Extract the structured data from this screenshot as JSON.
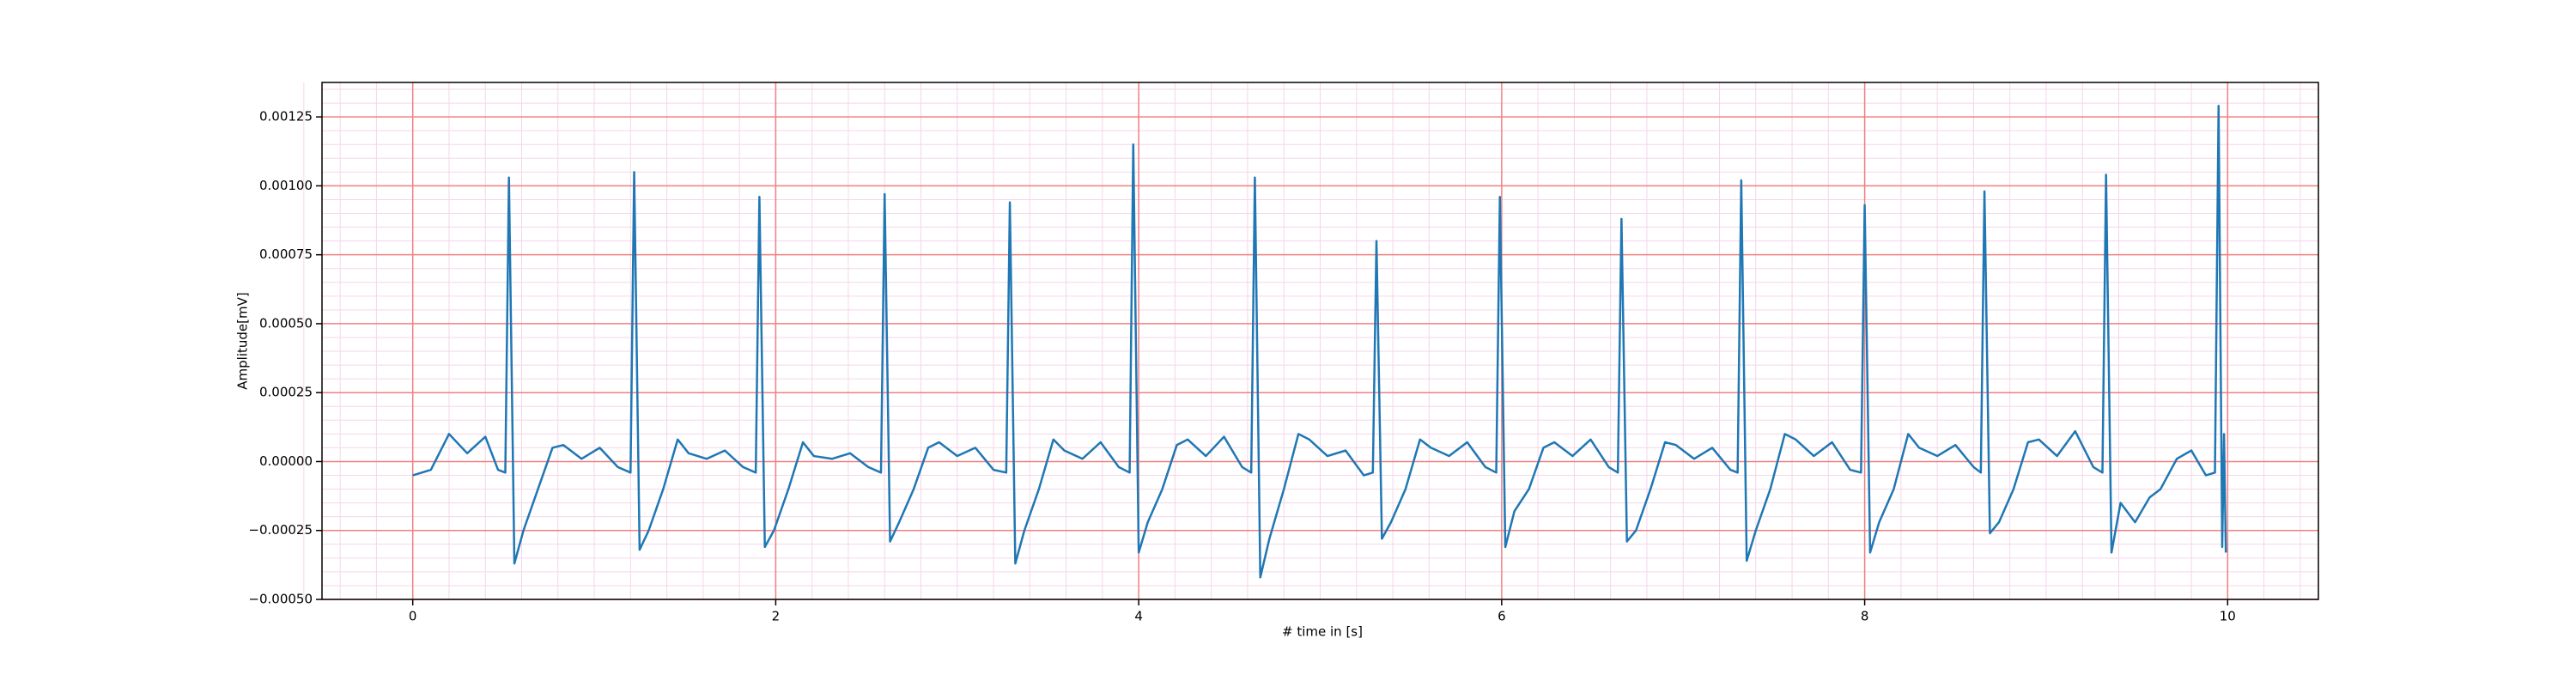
{
  "chart_data": {
    "type": "line",
    "xlabel": "# time in [s]",
    "ylabel": "Amplitude[mV]",
    "xlim": [
      -0.5,
      10.5
    ],
    "ylim": [
      -0.0005,
      0.001375
    ],
    "xticks": [
      0,
      2,
      4,
      6,
      8,
      10
    ],
    "yticks": [
      {
        "value": -0.0005,
        "label": "−0.00050"
      },
      {
        "value": -0.00025,
        "label": "−0.00025"
      },
      {
        "value": 0,
        "label": "0.00000"
      },
      {
        "value": 0.00025,
        "label": "0.00025"
      },
      {
        "value": 0.0005,
        "label": "0.00050"
      },
      {
        "value": 0.00075,
        "label": "0.00075"
      },
      {
        "value": 0.001,
        "label": "0.00100"
      },
      {
        "value": 0.00125,
        "label": "0.00125"
      }
    ],
    "grid": true,
    "series": [
      {
        "color": "#1f77b4",
        "x": [
          0,
          0.1,
          0.2,
          0.3,
          0.4,
          0.47,
          0.51,
          0.53,
          0.56,
          0.61,
          0.69,
          0.77,
          0.83,
          0.93,
          1.03,
          1.13,
          1.2,
          1.22,
          1.25,
          1.3,
          1.38,
          1.46,
          1.52,
          1.62,
          1.72,
          1.82,
          1.89,
          1.91,
          1.94,
          1.99,
          2.07,
          2.15,
          2.21,
          2.31,
          2.41,
          2.51,
          2.58,
          2.6,
          2.63,
          2.68,
          2.76,
          2.84,
          2.9,
          3.0,
          3.1,
          3.2,
          3.27,
          3.29,
          3.32,
          3.37,
          3.45,
          3.53,
          3.59,
          3.69,
          3.79,
          3.89,
          3.95,
          3.97,
          4.0,
          4.05,
          4.13,
          4.21,
          4.27,
          4.37,
          4.47,
          4.57,
          4.62,
          4.64,
          4.67,
          4.72,
          4.8,
          4.88,
          4.94,
          5.04,
          5.14,
          5.24,
          5.29,
          5.31,
          5.34,
          5.39,
          5.47,
          5.55,
          5.61,
          5.71,
          5.81,
          5.91,
          5.97,
          5.99,
          6.02,
          6.07,
          6.15,
          6.23,
          6.29,
          6.39,
          6.49,
          6.59,
          6.64,
          6.66,
          6.69,
          6.74,
          6.82,
          6.9,
          6.96,
          7.06,
          7.16,
          7.26,
          7.3,
          7.32,
          7.35,
          7.4,
          7.48,
          7.56,
          7.62,
          7.72,
          7.82,
          7.92,
          7.98,
          8.0,
          8.03,
          8.08,
          8.16,
          8.24,
          8.3,
          8.4,
          8.5,
          8.6,
          8.64,
          8.66,
          8.69,
          8.74,
          8.82,
          8.9,
          8.96,
          9.06,
          9.16,
          9.26,
          9.31,
          9.33,
          9.36,
          9.41,
          9.49,
          9.57,
          9.63,
          9.72,
          9.8,
          9.88,
          9.93,
          9.95,
          9.97,
          9.98,
          9.99
        ],
        "values": [
          -5e-05,
          -3e-05,
          0.0001,
          3e-05,
          9e-05,
          -3e-05,
          -4e-05,
          0.00103,
          -0.00037,
          -0.00025,
          -0.0001,
          5e-05,
          6e-05,
          1e-05,
          5e-05,
          -2e-05,
          -4e-05,
          0.00105,
          -0.00032,
          -0.00025,
          -0.0001,
          8e-05,
          3e-05,
          1e-05,
          4e-05,
          -2e-05,
          -4e-05,
          0.00096,
          -0.00031,
          -0.00025,
          -0.0001,
          7e-05,
          2e-05,
          1e-05,
          3e-05,
          -2e-05,
          -4e-05,
          0.00097,
          -0.00029,
          -0.00022,
          -0.0001,
          5e-05,
          7e-05,
          2e-05,
          5e-05,
          -3e-05,
          -4e-05,
          0.00094,
          -0.00037,
          -0.00025,
          -0.0001,
          8e-05,
          4e-05,
          1e-05,
          7e-05,
          -2e-05,
          -4e-05,
          0.00115,
          -0.00033,
          -0.00022,
          -0.0001,
          6e-05,
          8e-05,
          2e-05,
          9e-05,
          -2e-05,
          -4e-05,
          0.00103,
          -0.00042,
          -0.00028,
          -0.0001,
          0.0001,
          8e-05,
          2e-05,
          4e-05,
          -5e-05,
          -4e-05,
          0.0008,
          -0.00028,
          -0.00022,
          -0.0001,
          8e-05,
          5e-05,
          2e-05,
          7e-05,
          -2e-05,
          -4e-05,
          0.00096,
          -0.00031,
          -0.00018,
          -0.0001,
          5e-05,
          7e-05,
          2e-05,
          8e-05,
          -2e-05,
          -4e-05,
          0.00088,
          -0.00029,
          -0.00025,
          -0.0001,
          7e-05,
          6e-05,
          1e-05,
          5e-05,
          -3e-05,
          -4e-05,
          0.00102,
          -0.00036,
          -0.00025,
          -0.0001,
          0.0001,
          8e-05,
          2e-05,
          7e-05,
          -3e-05,
          -4e-05,
          0.00093,
          -0.00033,
          -0.00022,
          -0.0001,
          0.0001,
          5e-05,
          2e-05,
          6e-05,
          -2e-05,
          -4e-05,
          0.00098,
          -0.00026,
          -0.00022,
          -0.0001,
          7e-05,
          8e-05,
          2e-05,
          0.00011,
          -2e-05,
          -4e-05,
          0.00104,
          -0.00033,
          -0.00015,
          -0.00022,
          -0.00013,
          -0.0001,
          1e-05,
          4e-05,
          -5e-05,
          -4e-05,
          0.00129,
          -0.00031,
          0.0001,
          -0.00033
        ]
      }
    ]
  }
}
